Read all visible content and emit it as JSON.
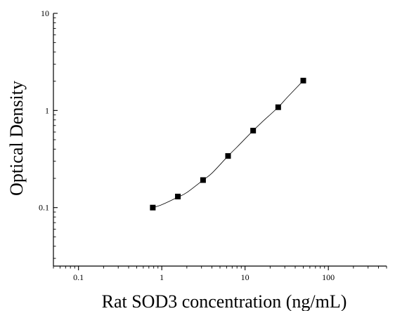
{
  "chart_data": {
    "type": "scatter",
    "title": "",
    "xlabel": "Rat SOD3 concentration (ng/mL)",
    "ylabel": "Optical Density",
    "x_scale": "log",
    "y_scale": "log",
    "xlim": [
      0.05,
      500
    ],
    "ylim": [
      0.025,
      10
    ],
    "x_ticks": [
      {
        "value": 0.1,
        "label": "0.1"
      },
      {
        "value": 1,
        "label": "1"
      },
      {
        "value": 10,
        "label": "10"
      },
      {
        "value": 100,
        "label": "100"
      }
    ],
    "y_ticks": [
      {
        "value": 0.1,
        "label": "0.1"
      },
      {
        "value": 1,
        "label": "1"
      },
      {
        "value": 10,
        "label": "10"
      }
    ],
    "grid": false,
    "legend": "none",
    "series": [
      {
        "x": [
          0.78,
          1.56,
          3.13,
          6.25,
          12.5,
          25,
          50
        ],
        "y": [
          0.1,
          0.13,
          0.192,
          0.34,
          0.62,
          1.08,
          2.03
        ],
        "marker": "square",
        "color": "#000000"
      }
    ],
    "fit_curve": {
      "x": [
        0.78,
        1,
        1.56,
        2,
        3.13,
        4,
        6.25,
        8,
        12.5,
        16,
        25,
        32,
        50
      ],
      "y": [
        0.1,
        0.107,
        0.128,
        0.143,
        0.192,
        0.226,
        0.34,
        0.42,
        0.62,
        0.76,
        1.08,
        1.36,
        2.03
      ],
      "color": "#000000"
    }
  }
}
